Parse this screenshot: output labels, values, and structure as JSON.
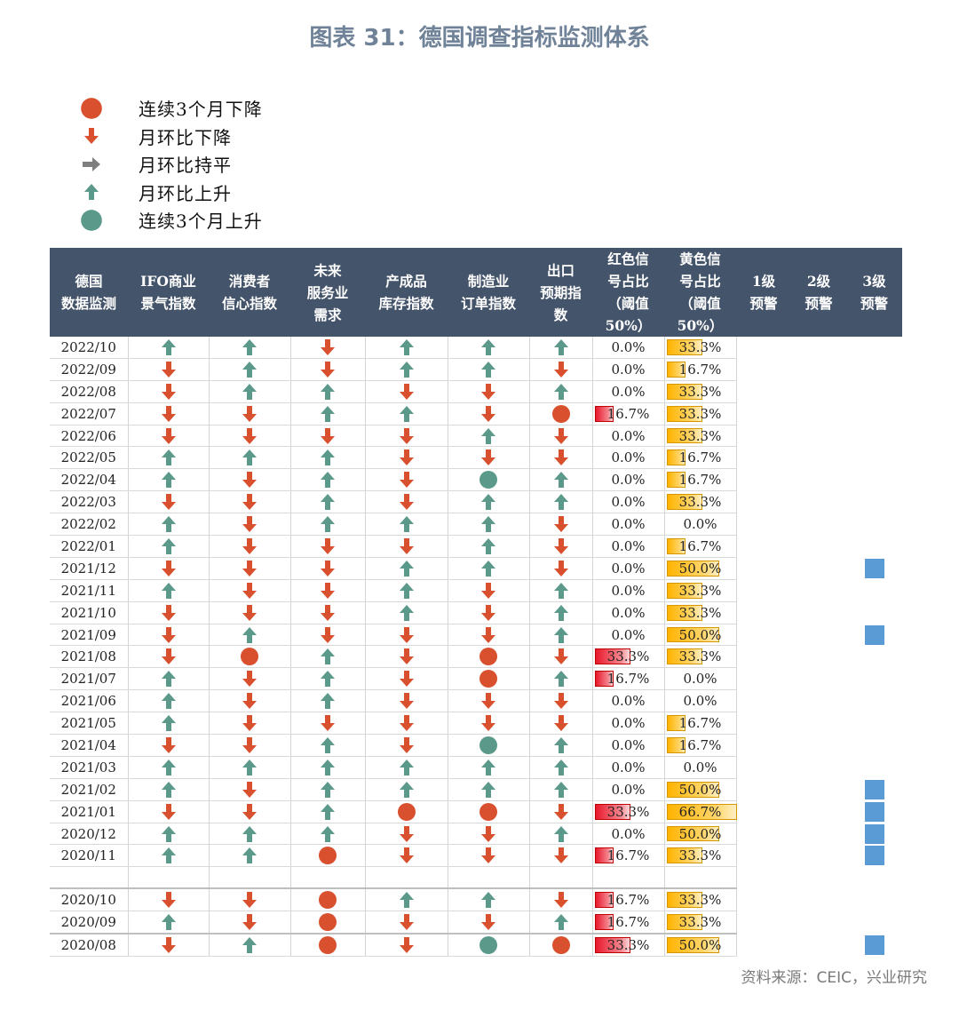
{
  "title": "图表 31：德国调查指标监测体系",
  "legend": [
    {
      "symbol": "circle-red",
      "label": "连续3个月下降"
    },
    {
      "symbol": "down",
      "label": "月环比下降"
    },
    {
      "symbol": "flat",
      "label": "月环比持平"
    },
    {
      "symbol": "up",
      "label": "月环比上升"
    },
    {
      "symbol": "circle-green",
      "label": "连续3个月上升"
    }
  ],
  "colors": {
    "header_bg": "#44546a",
    "red": "#d9502e",
    "green": "#5b9a8b",
    "gray": "#7f7f7f",
    "warn": "#5b9bd5"
  },
  "headers": [
    [
      "德国",
      "数据监测"
    ],
    [
      "IFO商业",
      "景气指数"
    ],
    [
      "消费者",
      "信心指数"
    ],
    [
      "未来",
      "服务业",
      "需求"
    ],
    [
      "产成品",
      "库存指数"
    ],
    [
      "制造业",
      "订单指数"
    ],
    [
      "出口",
      "预期指",
      "数"
    ],
    [
      "红色信",
      "号占比",
      "（阈值",
      "50%）"
    ],
    [
      "黄色信",
      "号占比",
      "（阈值",
      "50%）"
    ],
    [
      "1级",
      "预警"
    ],
    [
      "2级",
      "预警"
    ],
    [
      "3级",
      "预警"
    ]
  ],
  "chart_data": {
    "type": "table",
    "title": "图表 31：德国调查指标监测体系",
    "columns": [
      "IFO商业景气指数",
      "消费者信心指数",
      "未来服务业需求",
      "产成品库存指数",
      "制造业订单指数",
      "出口预期指数"
    ],
    "symbol_codes": {
      "U": "月环比上升",
      "D": "月环比下降",
      "F": "月环比持平",
      "R": "连续3个月下降",
      "G": "连续3个月上升"
    },
    "rows": [
      {
        "date": "2022/10",
        "s": [
          "U",
          "U",
          "D",
          "U",
          "U",
          "U"
        ],
        "red": 0.0,
        "yel": 33.3,
        "warn": [
          0,
          0,
          0
        ]
      },
      {
        "date": "2022/09",
        "s": [
          "D",
          "U",
          "D",
          "U",
          "U",
          "D"
        ],
        "red": 0.0,
        "yel": 16.7,
        "warn": [
          0,
          0,
          0
        ]
      },
      {
        "date": "2022/08",
        "s": [
          "D",
          "U",
          "U",
          "D",
          "D",
          "U"
        ],
        "red": 0.0,
        "yel": 33.3,
        "warn": [
          0,
          0,
          0
        ]
      },
      {
        "date": "2022/07",
        "s": [
          "D",
          "D",
          "U",
          "U",
          "D",
          "R"
        ],
        "red": 16.7,
        "yel": 33.3,
        "warn": [
          0,
          0,
          0
        ]
      },
      {
        "date": "2022/06",
        "s": [
          "D",
          "D",
          "D",
          "D",
          "U",
          "D"
        ],
        "red": 0.0,
        "yel": 33.3,
        "warn": [
          0,
          0,
          0
        ]
      },
      {
        "date": "2022/05",
        "s": [
          "U",
          "U",
          "U",
          "D",
          "D",
          "D"
        ],
        "red": 0.0,
        "yel": 16.7,
        "warn": [
          0,
          0,
          0
        ]
      },
      {
        "date": "2022/04",
        "s": [
          "U",
          "D",
          "U",
          "D",
          "G",
          "U"
        ],
        "red": 0.0,
        "yel": 16.7,
        "warn": [
          0,
          0,
          0
        ]
      },
      {
        "date": "2022/03",
        "s": [
          "D",
          "D",
          "U",
          "D",
          "U",
          "U"
        ],
        "red": 0.0,
        "yel": 33.3,
        "warn": [
          0,
          0,
          0
        ]
      },
      {
        "date": "2022/02",
        "s": [
          "U",
          "D",
          "U",
          "U",
          "U",
          "D"
        ],
        "red": 0.0,
        "yel": 0.0,
        "warn": [
          0,
          0,
          0
        ]
      },
      {
        "date": "2022/01",
        "s": [
          "U",
          "D",
          "D",
          "D",
          "U",
          "D"
        ],
        "red": 0.0,
        "yel": 16.7,
        "warn": [
          0,
          0,
          0
        ]
      },
      {
        "date": "2021/12",
        "s": [
          "D",
          "D",
          "D",
          "U",
          "U",
          "D"
        ],
        "red": 0.0,
        "yel": 50.0,
        "warn": [
          0,
          0,
          1
        ]
      },
      {
        "date": "2021/11",
        "s": [
          "U",
          "D",
          "D",
          "U",
          "D",
          "U"
        ],
        "red": 0.0,
        "yel": 33.3,
        "warn": [
          0,
          0,
          0
        ]
      },
      {
        "date": "2021/10",
        "s": [
          "D",
          "D",
          "D",
          "U",
          "D",
          "U"
        ],
        "red": 0.0,
        "yel": 33.3,
        "warn": [
          0,
          0,
          0
        ]
      },
      {
        "date": "2021/09",
        "s": [
          "D",
          "U",
          "D",
          "D",
          "D",
          "U"
        ],
        "red": 0.0,
        "yel": 50.0,
        "warn": [
          0,
          0,
          1
        ]
      },
      {
        "date": "2021/08",
        "s": [
          "D",
          "R",
          "U",
          "D",
          "R",
          "D"
        ],
        "red": 33.3,
        "yel": 33.3,
        "warn": [
          0,
          0,
          0
        ]
      },
      {
        "date": "2021/07",
        "s": [
          "U",
          "D",
          "U",
          "D",
          "R",
          "U"
        ],
        "red": 16.7,
        "yel": 0.0,
        "warn": [
          0,
          0,
          0
        ]
      },
      {
        "date": "2021/06",
        "s": [
          "U",
          "D",
          "U",
          "D",
          "D",
          "D"
        ],
        "red": 0.0,
        "yel": 0.0,
        "warn": [
          0,
          0,
          0
        ]
      },
      {
        "date": "2021/05",
        "s": [
          "U",
          "D",
          "D",
          "D",
          "D",
          "D"
        ],
        "red": 0.0,
        "yel": 16.7,
        "warn": [
          0,
          0,
          0
        ]
      },
      {
        "date": "2021/04",
        "s": [
          "D",
          "D",
          "U",
          "D",
          "G",
          "U"
        ],
        "red": 0.0,
        "yel": 16.7,
        "warn": [
          0,
          0,
          0
        ]
      },
      {
        "date": "2021/03",
        "s": [
          "U",
          "U",
          "U",
          "U",
          "U",
          "U"
        ],
        "red": 0.0,
        "yel": 0.0,
        "warn": [
          0,
          0,
          0
        ]
      },
      {
        "date": "2021/02",
        "s": [
          "U",
          "D",
          "U",
          "U",
          "U",
          "U"
        ],
        "red": 0.0,
        "yel": 50.0,
        "warn": [
          0,
          0,
          1
        ]
      },
      {
        "date": "2021/01",
        "s": [
          "D",
          "D",
          "U",
          "R",
          "R",
          "D"
        ],
        "red": 33.3,
        "yel": 66.7,
        "warn": [
          0,
          0,
          1
        ]
      },
      {
        "date": "2020/12",
        "s": [
          "U",
          "U",
          "U",
          "D",
          "D",
          "U"
        ],
        "red": 0.0,
        "yel": 50.0,
        "warn": [
          0,
          0,
          1
        ]
      },
      {
        "date": "2020/11",
        "s": [
          "U",
          "U",
          "R",
          "D",
          "D",
          "D"
        ],
        "red": 16.7,
        "yel": 33.3,
        "warn": [
          0,
          0,
          1
        ]
      },
      {
        "date": "2020/10",
        "s": [
          "D",
          "D",
          "R",
          "U",
          "U",
          "D"
        ],
        "red": 16.7,
        "yel": 33.3,
        "warn": [
          0,
          0,
          0
        ]
      },
      {
        "date": "2020/09",
        "s": [
          "U",
          "D",
          "R",
          "D",
          "D",
          "U"
        ],
        "red": 16.7,
        "yel": 33.3,
        "warn": [
          0,
          0,
          0
        ]
      },
      {
        "date": "2020/08",
        "s": [
          "D",
          "U",
          "R",
          "D",
          "G",
          "R"
        ],
        "red": 33.3,
        "yel": 50.0,
        "warn": [
          0,
          0,
          1
        ]
      }
    ]
  },
  "source": "资料来源：CEIC，兴业研究"
}
